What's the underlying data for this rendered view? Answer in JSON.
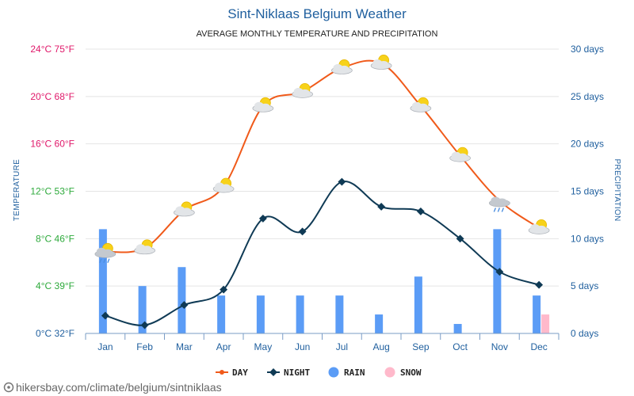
{
  "header": {
    "title": "Sint-Niklaas Belgium Weather",
    "subtitle": "AVERAGE MONTHLY TEMPERATURE AND PRECIPITATION"
  },
  "footer": {
    "source": "hikersbay.com/climate/belgium/sintniklaas"
  },
  "chart_data": {
    "type": "line",
    "title": "Sint-Niklaas Belgium Weather",
    "subtitle": "AVERAGE MONTHLY TEMPERATURE AND PRECIPITATION",
    "categories": [
      "Jan",
      "Feb",
      "Mar",
      "Apr",
      "May",
      "Jun",
      "Jul",
      "Aug",
      "Sep",
      "Oct",
      "Nov",
      "Dec"
    ],
    "left_axis": {
      "label": "TEMPERATURE",
      "ylim": [
        0,
        24
      ],
      "ticks": [
        {
          "value": 0,
          "label": "0°C 32°F",
          "color": "#1f5f9e"
        },
        {
          "value": 4,
          "label": "4°C 39°F",
          "color": "#2eaa3c"
        },
        {
          "value": 8,
          "label": "8°C 46°F",
          "color": "#2eaa3c"
        },
        {
          "value": 12,
          "label": "12°C 53°F",
          "color": "#2eaa3c"
        },
        {
          "value": 16,
          "label": "16°C 60°F",
          "color": "#e0186a"
        },
        {
          "value": 20,
          "label": "20°C 68°F",
          "color": "#e0186a"
        },
        {
          "value": 24,
          "label": "24°C 75°F",
          "color": "#e0186a"
        }
      ]
    },
    "right_axis": {
      "label": "PRECIPITATION",
      "ylim": [
        0,
        30
      ],
      "ticks": [
        {
          "value": 0,
          "label": "0 days"
        },
        {
          "value": 5,
          "label": "5 days"
        },
        {
          "value": 10,
          "label": "10 days"
        },
        {
          "value": 15,
          "label": "15 days"
        },
        {
          "value": 20,
          "label": "20 days"
        },
        {
          "value": 25,
          "label": "25 days"
        },
        {
          "value": 30,
          "label": "30 days"
        }
      ]
    },
    "series": [
      {
        "name": "DAY",
        "kind": "line",
        "axis": "left",
        "color": "#f05a1a",
        "values": [
          6.9,
          7.2,
          10.4,
          12.4,
          19.2,
          20.4,
          22.4,
          22.8,
          19.2,
          15.0,
          11.2,
          8.9
        ]
      },
      {
        "name": "NIGHT",
        "kind": "line",
        "axis": "left",
        "color": "#0f3a55",
        "values": [
          1.5,
          0.7,
          2.4,
          3.7,
          9.7,
          8.6,
          12.8,
          10.7,
          10.3,
          8.0,
          5.2,
          4.1
        ]
      },
      {
        "name": "RAIN",
        "kind": "bar",
        "axis": "right",
        "color": "#5b9cf6",
        "values": [
          11,
          5,
          7,
          4,
          4,
          4,
          4,
          2,
          6,
          1,
          11,
          4
        ]
      },
      {
        "name": "SNOW",
        "kind": "bar",
        "axis": "right",
        "color": "#ffb9cb",
        "values": [
          0,
          0,
          0,
          0,
          0,
          0,
          0,
          0,
          0,
          0,
          0,
          2
        ]
      }
    ],
    "weather_icons": [
      "cloud-rain-sun-icon",
      "sun-cloud-icon",
      "sun-cloud-icon",
      "sun-cloud-icon",
      "sun-cloud-icon",
      "sun-cloud-icon",
      "sun-cloud-icon",
      "sun-cloud-icon",
      "sun-cloud-icon",
      "sun-cloud-icon",
      "cloud-rain-icon",
      "sun-cloud-icon"
    ],
    "grid": true,
    "legend_position": "bottom-center"
  }
}
